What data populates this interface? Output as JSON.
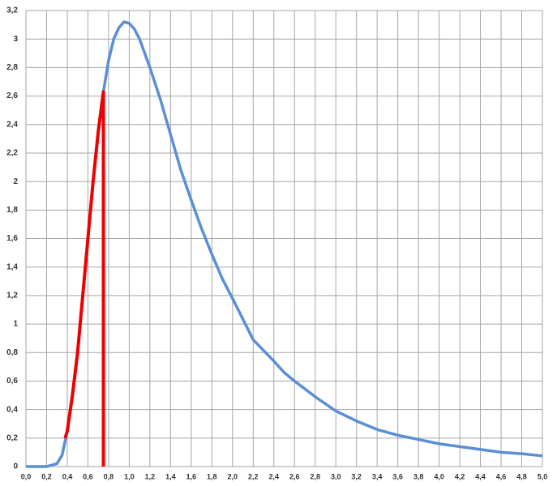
{
  "chart_data": {
    "type": "line",
    "xlim": [
      0,
      5.0
    ],
    "ylim": [
      0,
      3.2
    ],
    "grid": true,
    "xticks": [
      {
        "value": 0,
        "label": "0,0"
      },
      {
        "value": 0.2,
        "label": "0,2"
      },
      {
        "value": 0.4,
        "label": "0,4"
      },
      {
        "value": 0.6,
        "label": "0,6"
      },
      {
        "value": 0.8,
        "label": "0,8"
      },
      {
        "value": 1.0,
        "label": "1,0"
      },
      {
        "value": 1.2,
        "label": "1,2"
      },
      {
        "value": 1.4,
        "label": "1,4"
      },
      {
        "value": 1.6,
        "label": "1,6"
      },
      {
        "value": 1.8,
        "label": "1,8"
      },
      {
        "value": 2.0,
        "label": "2,0"
      },
      {
        "value": 2.2,
        "label": "2,2"
      },
      {
        "value": 2.4,
        "label": "2,4"
      },
      {
        "value": 2.6,
        "label": "2,6"
      },
      {
        "value": 2.8,
        "label": "2,8"
      },
      {
        "value": 3.0,
        "label": "3,0"
      },
      {
        "value": 3.2,
        "label": "3,2"
      },
      {
        "value": 3.4,
        "label": "3,4"
      },
      {
        "value": 3.6,
        "label": "3,6"
      },
      {
        "value": 3.8,
        "label": "3,8"
      },
      {
        "value": 4.0,
        "label": "4,0"
      },
      {
        "value": 4.2,
        "label": "4,2"
      },
      {
        "value": 4.4,
        "label": "4,4"
      },
      {
        "value": 4.6,
        "label": "4,6"
      },
      {
        "value": 4.8,
        "label": "4,8"
      },
      {
        "value": 5.0,
        "label": "5,0"
      }
    ],
    "yticks": [
      0,
      {
        "value": 0.2,
        "label": "0,2"
      },
      {
        "value": 0.4,
        "label": "0,4"
      },
      {
        "value": 0.6,
        "label": "0,6"
      },
      {
        "value": 0.8,
        "label": "0,8"
      },
      1,
      {
        "value": 1.2,
        "label": "1,2"
      },
      {
        "value": 1.4,
        "label": "1,4"
      },
      {
        "value": 1.6,
        "label": "1,6"
      },
      {
        "value": 1.8,
        "label": "1,8"
      },
      2,
      {
        "value": 2.2,
        "label": "2,2"
      },
      {
        "value": 2.4,
        "label": "2,4"
      },
      {
        "value": 2.6,
        "label": "2,6"
      },
      {
        "value": 2.8,
        "label": "2,8"
      },
      3,
      {
        "value": 3.2,
        "label": "3,2"
      }
    ],
    "series": [
      {
        "color": "#5b8fd5",
        "x": [
          0,
          0.1,
          0.2,
          0.25,
          0.3,
          0.35,
          0.4,
          0.45,
          0.5,
          0.55,
          0.6,
          0.65,
          0.7,
          0.75,
          0.8,
          0.85,
          0.9,
          0.95,
          1.0,
          1.05,
          1.1,
          1.2,
          1.3,
          1.4,
          1.5,
          1.6,
          1.7,
          1.8,
          1.9,
          2.0,
          2.2,
          2.4,
          2.5,
          2.6,
          2.8,
          3.0,
          3.2,
          3.4,
          3.6,
          3.8,
          4.0,
          4.2,
          4.4,
          4.6,
          4.8,
          5.0
        ],
        "values": [
          0,
          0,
          0,
          0.01,
          0.02,
          0.08,
          0.25,
          0.5,
          0.8,
          1.2,
          1.6,
          2.0,
          2.35,
          2.63,
          2.85,
          3.0,
          3.08,
          3.12,
          3.11,
          3.07,
          3.0,
          2.8,
          2.58,
          2.33,
          2.08,
          1.87,
          1.67,
          1.49,
          1.32,
          1.18,
          0.89,
          0.74,
          0.66,
          0.6,
          0.49,
          0.39,
          0.32,
          0.26,
          0.22,
          0.19,
          0.16,
          0.14,
          0.12,
          0.1,
          0.09,
          0.075
        ]
      },
      {
        "color": "#ee0000",
        "x": [
          0.38,
          0.4,
          0.45,
          0.5,
          0.55,
          0.6,
          0.65,
          0.7,
          0.75,
          0.75
        ],
        "values": [
          0.2,
          0.25,
          0.5,
          0.8,
          1.2,
          1.6,
          2.0,
          2.35,
          2.63,
          0
        ]
      }
    ]
  }
}
